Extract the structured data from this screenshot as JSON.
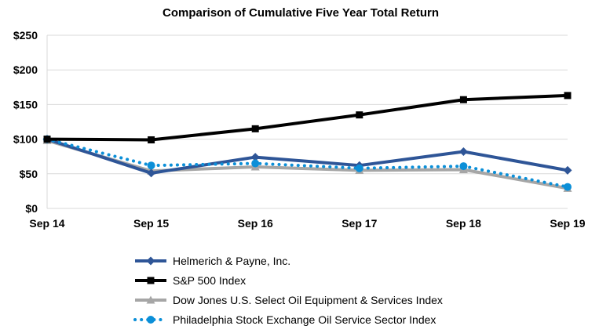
{
  "chart_data": {
    "type": "line",
    "title": "Comparison of Cumulative Five Year Total Return",
    "categories": [
      "Sep 14",
      "Sep 15",
      "Sep 16",
      "Sep 17",
      "Sep 18",
      "Sep 19"
    ],
    "ylim": [
      0,
      250
    ],
    "yticks": [
      0,
      50,
      100,
      150,
      200,
      250
    ],
    "ytick_labels": [
      "$0",
      "$50",
      "$100",
      "$150",
      "$200",
      "$250"
    ],
    "xlabel": "",
    "ylabel": "",
    "grid": "horizontal",
    "legend_position": "bottom",
    "series": [
      {
        "name": "Helmerich & Payne, Inc.",
        "values": [
          100,
          51,
          74,
          62,
          82,
          55
        ],
        "color": "#2e5597",
        "marker": "diamond",
        "line_style": "solid"
      },
      {
        "name": "S&P 500 Index",
        "values": [
          100,
          99,
          115,
          135,
          157,
          163
        ],
        "color": "#000000",
        "marker": "square",
        "line_style": "solid"
      },
      {
        "name": "Dow Jones U.S. Select Oil Equipment & Services Index",
        "values": [
          98,
          54,
          60,
          55,
          56,
          29
        ],
        "color": "#a6a6a6",
        "marker": "triangle",
        "line_style": "solid"
      },
      {
        "name": "Philadelphia Stock Exchange Oil Service Sector Index",
        "values": [
          100,
          62,
          65,
          58,
          61,
          31
        ],
        "color": "#0b8fd8",
        "marker": "circle",
        "line_style": "dotted"
      }
    ]
  }
}
